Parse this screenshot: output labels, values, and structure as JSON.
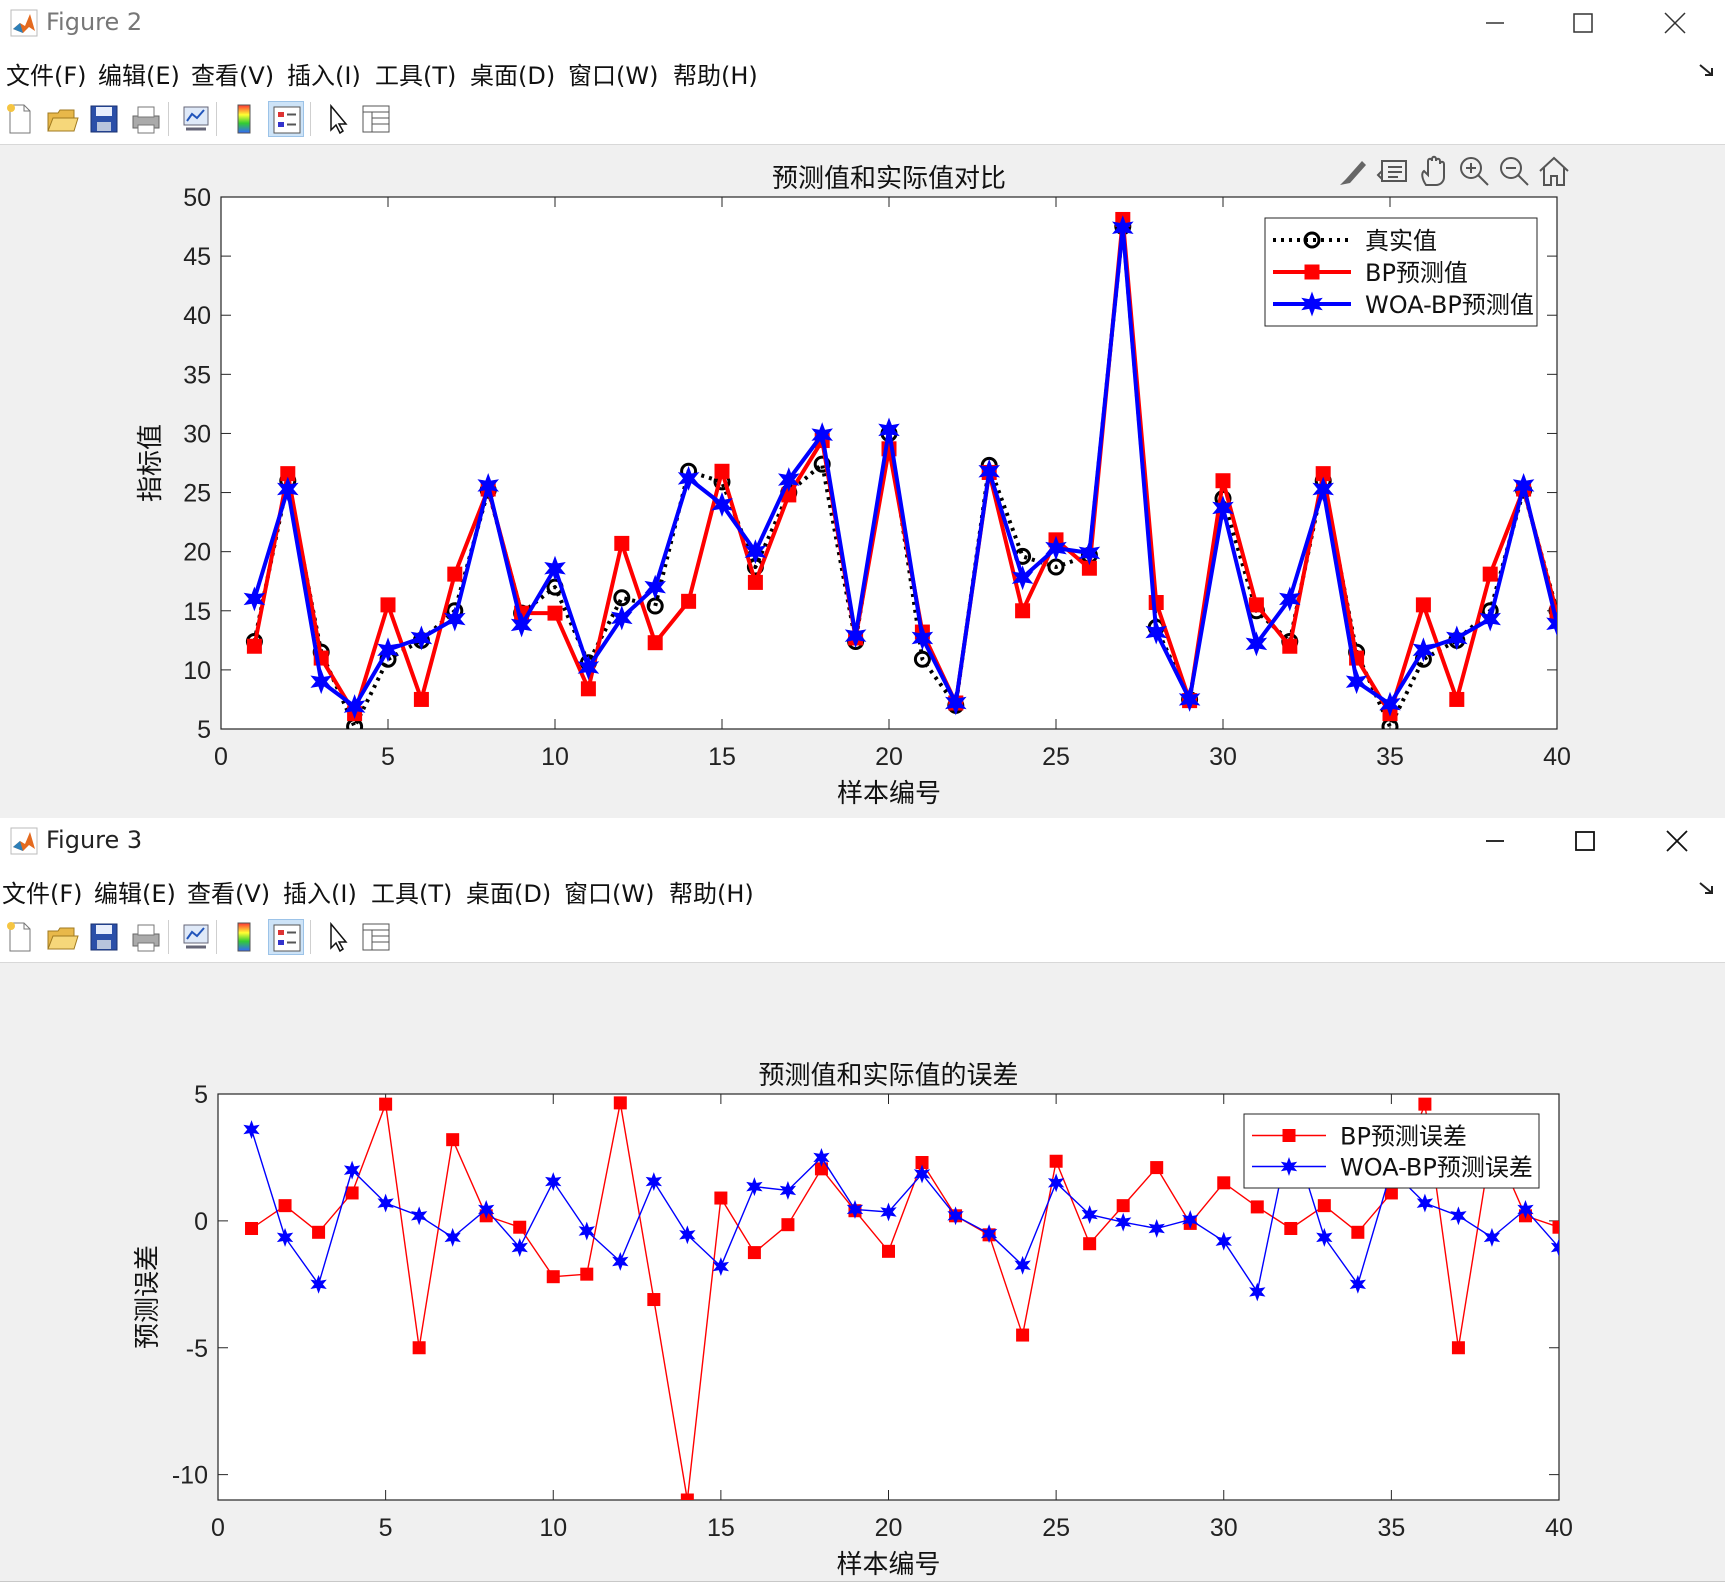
{
  "windows": [
    {
      "id": "fig2",
      "title": "Figure 2",
      "menu": [
        "文件(F)",
        "编辑(E)",
        "查看(V)",
        "插入(I)",
        "工具(T)",
        "桌面(D)",
        "窗口(W)",
        "帮助(H)"
      ],
      "toolbar_icons": [
        "new-figure-icon",
        "open-file-icon",
        "save-icon",
        "print-icon",
        "link-plot-icon",
        "insert-colorbar-icon",
        "insert-legend-icon",
        "edit-plot-pointer-icon",
        "property-inspector-icon"
      ],
      "axes_toolbar_icons": [
        "brush-icon",
        "data-tips-icon",
        "pan-hand-icon",
        "zoom-in-icon",
        "zoom-out-icon",
        "restore-view-home-icon"
      ]
    },
    {
      "id": "fig3",
      "title": "Figure 3",
      "menu": [
        "文件(F)",
        "编辑(E)",
        "查看(V)",
        "插入(I)",
        "工具(T)",
        "桌面(D)",
        "窗口(W)",
        "帮助(H)"
      ],
      "toolbar_icons": [
        "new-figure-icon",
        "open-file-icon",
        "save-icon",
        "print-icon",
        "link-plot-icon",
        "insert-colorbar-icon",
        "insert-legend-icon",
        "edit-plot-pointer-icon",
        "property-inspector-icon"
      ]
    }
  ],
  "colors": {
    "true": "#000000",
    "bp": "#ff0000",
    "woa": "#0000ff",
    "axis": "#262626"
  },
  "chart_data": [
    {
      "type": "line",
      "title": "预测值和实际值对比",
      "xlabel": "样本编号",
      "ylabel": "指标值",
      "xlim": [
        0,
        40
      ],
      "ylim": [
        5,
        50
      ],
      "xticks": [
        0,
        5,
        10,
        15,
        20,
        25,
        30,
        35,
        40
      ],
      "yticks": [
        5,
        10,
        15,
        20,
        25,
        30,
        35,
        40,
        45,
        50
      ],
      "grid": false,
      "legend_position": "top-right",
      "x": [
        1,
        2,
        3,
        4,
        5,
        6,
        7,
        8,
        9,
        10,
        11,
        12,
        13,
        14,
        15,
        16,
        17,
        18,
        19,
        20,
        21,
        22,
        23,
        24,
        25,
        26,
        27,
        28,
        29,
        30,
        31,
        32,
        33,
        34,
        35,
        36,
        37,
        38,
        39,
        40
      ],
      "series": [
        {
          "name": "真实值",
          "style": "dotted-circle",
          "values": [
            12.4,
            26,
            11.5,
            5.2,
            10.9,
            12.5,
            15,
            25.2,
            14.8,
            17,
            10.6,
            16.1,
            15.4,
            26.8,
            25.9,
            18.7,
            25,
            27.4,
            12.4,
            30,
            10.9,
            7,
            27.3,
            19.6,
            18.7,
            19.7,
            47.5,
            13.6,
            7.5,
            24.5,
            15,
            12.4,
            26,
            11.5,
            5.2,
            10.9,
            12.5,
            15,
            25.2,
            15
          ]
        },
        {
          "name": "BP预测值",
          "style": "solid-square",
          "values": [
            12,
            26.6,
            11,
            6.3,
            15.5,
            7.5,
            18.1,
            25.3,
            14.8,
            14.8,
            8.4,
            20.7,
            12.3,
            15.8,
            26.8,
            17.4,
            24.8,
            29.4,
            12.7,
            28.7,
            13.2,
            7.2,
            26.7,
            15,
            21,
            18.6,
            48.1,
            15.7,
            7.4,
            26,
            15.5,
            12,
            26.6,
            11,
            6.3,
            15.5,
            7.5,
            18.1,
            25.3,
            14.8
          ]
        },
        {
          "name": "WOA-BP预测值",
          "style": "solid-star",
          "values": [
            16,
            25.3,
            9,
            6.9,
            11.7,
            12.7,
            14.3,
            25.6,
            13.8,
            18.6,
            10.2,
            14.4,
            17,
            26.2,
            24,
            20,
            26.1,
            29.9,
            12.9,
            30.3,
            12.7,
            7.2,
            26.8,
            17.8,
            20.3,
            19.9,
            47.4,
            13.2,
            7.5,
            23.7,
            12.2,
            16,
            25.3,
            9,
            7.1,
            11.7,
            12.7,
            14.3,
            25.6,
            13.9
          ]
        }
      ]
    },
    {
      "type": "line",
      "title": "预测值和实际值的误差",
      "xlabel": "样本编号",
      "ylabel": "预测误差",
      "xlim": [
        0,
        40
      ],
      "ylim": [
        -11,
        5
      ],
      "xticks": [
        0,
        5,
        10,
        15,
        20,
        25,
        30,
        35,
        40
      ],
      "yticks": [
        5,
        0,
        -5,
        -10
      ],
      "grid": false,
      "legend_position": "top-right",
      "x": [
        1,
        2,
        3,
        4,
        5,
        6,
        7,
        8,
        9,
        10,
        11,
        12,
        13,
        14,
        15,
        16,
        17,
        18,
        19,
        20,
        21,
        22,
        23,
        24,
        25,
        26,
        27,
        28,
        29,
        30,
        31,
        32,
        33,
        34,
        35,
        36,
        37,
        38,
        39,
        40
      ],
      "series": [
        {
          "name": "BP预测误差",
          "style": "thin-square",
          "values": [
            -0.3,
            0.6,
            -0.45,
            1.1,
            4.6,
            -5,
            3.2,
            0.2,
            -0.25,
            -2.2,
            -2.1,
            4.65,
            -3.1,
            -11,
            0.9,
            -1.25,
            -0.15,
            2.05,
            0.4,
            -1.2,
            2.3,
            0.2,
            -0.55,
            -4.5,
            2.35,
            -0.9,
            0.6,
            2.1,
            -0.1,
            1.5,
            0.55,
            -0.3,
            0.6,
            -0.45,
            1.1,
            4.6,
            -5,
            3.2,
            0.2,
            -0.25
          ]
        },
        {
          "name": "WOA-BP预测误差",
          "style": "thin-star",
          "values": [
            3.6,
            -0.65,
            -2.5,
            2,
            0.7,
            0.2,
            -0.65,
            0.45,
            -1.05,
            1.55,
            -0.4,
            -1.6,
            1.55,
            -0.55,
            -1.8,
            1.35,
            1.2,
            2.5,
            0.45,
            0.35,
            1.85,
            0.2,
            -0.5,
            -1.75,
            1.5,
            0.25,
            -0.05,
            -0.3,
            0.05,
            -0.8,
            -2.8,
            3.6,
            -0.65,
            -2.5,
            2,
            0.7,
            0.2,
            -0.65,
            0.45,
            -1.05
          ]
        }
      ]
    }
  ]
}
